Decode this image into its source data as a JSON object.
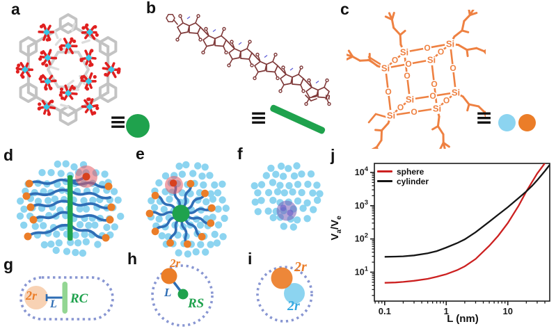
{
  "labels": {
    "a": "a",
    "b": "b",
    "c": "c",
    "d": "d",
    "e": "e",
    "f": "f",
    "g": "g",
    "h": "h",
    "i": "i",
    "j": "j"
  },
  "equivalence_symbol": "≡",
  "panel_b": {
    "repeat_label": "n"
  },
  "panel_c": {
    "si_label": "Si",
    "o_label": "O"
  },
  "panel_g": {
    "diameter_label": "2r",
    "length_label": "L",
    "rod_label": "RC"
  },
  "panel_h": {
    "diameter_label": "2r",
    "length_label": "L",
    "sphere_label": "RS"
  },
  "panel_i": {
    "top_diameter_label": "2r",
    "bottom_diameter_label": "2r"
  },
  "colors": {
    "green": "#1FA24D",
    "light_green_rod": "#93D693",
    "light_blue": "#8CD4F0",
    "chain_blue": "#2F6EB6",
    "orange": "#EB7D28",
    "poss_orange": "#EE8142",
    "polymer_maroon": "#7E3838",
    "dotted_outline": "#8896D2",
    "highlight_red": "rgba(228,90,100,0.55)",
    "highlight_red_dot": "#D7411F",
    "highlight_purple": "rgba(121,92,182,0.55)",
    "purple_dot": "rgba(100,90,200,0.6)",
    "cyan_metal": "#35C8E8",
    "red_bond": "#E02020",
    "gray_bond": "#C3C3C3",
    "light_gray_bond": "#DDDDDD",
    "label_blue": "#2E6DB4",
    "label_cyan": "#35A8E0",
    "axis_black": "#1A1A1A"
  },
  "chart_data": {
    "type": "line",
    "title": "",
    "xlabel": "L (nm)",
    "ylabel": "Va/Ve",
    "ylabel_parts": {
      "v1": "V",
      "sub1": "a",
      "v2": "/V",
      "sub2": "e"
    },
    "xscale": "log",
    "yscale": "log",
    "xlim": [
      0.068,
      48
    ],
    "ylim": [
      1.35,
      18700
    ],
    "xticks": [
      0.1,
      1,
      10
    ],
    "xtick_labels": [
      "0.1",
      "1",
      "10"
    ],
    "yticks": [
      10,
      100,
      1000,
      10000
    ],
    "grid": false,
    "legend": {
      "position": "top-left",
      "entries": [
        {
          "label": "sphere",
          "color": "#CC2020"
        },
        {
          "label": "cylinder",
          "color": "#151515"
        }
      ]
    },
    "series": [
      {
        "name": "sphere",
        "color": "#CC2020",
        "x": [
          0.1,
          0.15,
          0.2,
          0.3,
          0.5,
          0.7,
          1,
          1.5,
          2,
          3,
          5,
          7,
          10,
          15,
          20,
          25,
          30,
          40,
          45
        ],
        "y": [
          4.8,
          4.9,
          5.1,
          5.5,
          6.3,
          7.3,
          8.7,
          11.5,
          15,
          25,
          62,
          125,
          300,
          1000,
          2700,
          5300,
          9200,
          19000,
          27000
        ]
      },
      {
        "name": "cylinder",
        "color": "#151515",
        "x": [
          0.1,
          0.15,
          0.2,
          0.3,
          0.5,
          0.7,
          1,
          1.5,
          2,
          3,
          5,
          7,
          10,
          15,
          20,
          25,
          30,
          40,
          48
        ],
        "y": [
          29,
          29.5,
          30,
          32,
          37,
          43,
          55,
          75,
          97,
          160,
          330,
          540,
          900,
          1700,
          2700,
          4000,
          5800,
          11000,
          17000
        ]
      }
    ]
  }
}
